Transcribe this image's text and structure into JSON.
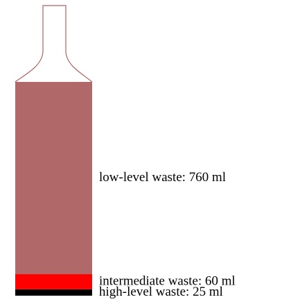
{
  "chart_data": {
    "type": "bottle",
    "values": [
      760,
      60,
      25
    ],
    "value_labels": [
      "low-level waste: 760 ml",
      "intermediate waste: 60 ml",
      "high-level waste: 25 ml"
    ],
    "colors": [
      "#b06868",
      "#ff0000",
      "#000000"
    ]
  }
}
